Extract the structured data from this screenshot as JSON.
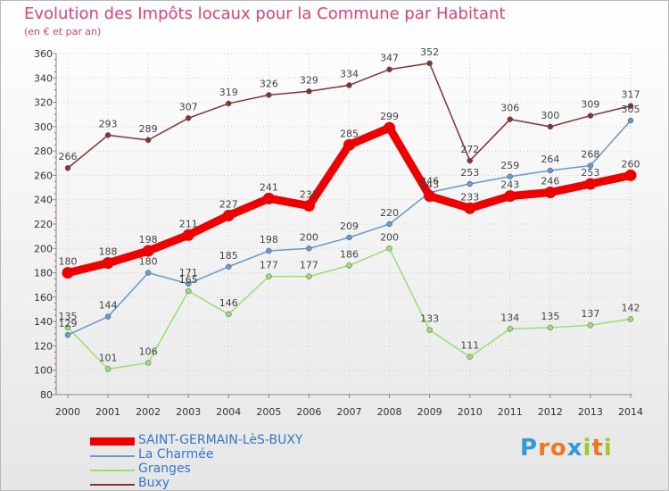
{
  "chart_data": {
    "type": "line",
    "title": "Evolution des Impôts locaux pour la Commune par Habitant",
    "subtitle": "(en € et par an)",
    "x": [
      "2000",
      "2001",
      "2002",
      "2003",
      "2004",
      "2005",
      "2006",
      "2007",
      "2008",
      "2009",
      "2010",
      "2011",
      "2012",
      "2013",
      "2014"
    ],
    "ylim": [
      80,
      360
    ],
    "yticks": [
      80,
      100,
      120,
      140,
      160,
      180,
      200,
      220,
      240,
      260,
      280,
      300,
      320,
      340,
      360
    ],
    "grid": true,
    "legend_position": "bottom-left",
    "series": [
      {
        "name": "SAINT-GERMAIN-LèS-BUXY",
        "color": "#ee0000",
        "values": [
          180,
          188,
          198,
          211,
          227,
          241,
          235,
          285,
          299,
          243,
          233,
          243,
          246,
          253,
          260
        ]
      },
      {
        "name": "La Charmée",
        "color": "#6699cc",
        "values": [
          129,
          144,
          180,
          171,
          185,
          198,
          200,
          209,
          220,
          246,
          253,
          259,
          264,
          268,
          305
        ]
      },
      {
        "name": "Granges",
        "color": "#99dd77",
        "values": [
          135,
          101,
          106,
          165,
          146,
          177,
          177,
          186,
          200,
          133,
          111,
          134,
          135,
          137,
          142
        ]
      },
      {
        "name": "Buxy",
        "color": "#883333",
        "values": [
          266,
          293,
          289,
          307,
          319,
          326,
          329,
          334,
          347,
          352,
          272,
          306,
          300,
          309,
          317
        ]
      }
    ]
  },
  "labels": {
    "SAINT-GERMAIN-LèS-BUXY": [
      "180",
      "188",
      "198",
      "211",
      "227",
      "241",
      "235",
      "285",
      "299",
      "243",
      "233",
      "243",
      "246",
      "253",
      "260"
    ],
    "La Charmée": [
      "129",
      "144",
      "180",
      "171",
      "185",
      "198",
      "200",
      "209",
      "220",
      "246",
      "253",
      "259",
      "264",
      "268",
      "305"
    ],
    "Granges": [
      "135",
      "101",
      "106",
      "165",
      "146",
      "177",
      "177",
      "186",
      "200",
      "133",
      "111",
      "134",
      "135",
      "137",
      "142"
    ],
    "Buxy": [
      "266",
      "293",
      "289",
      "307",
      "319",
      "326",
      "329",
      "334",
      "347",
      "352",
      "272",
      "306",
      "300",
      "309",
      "317"
    ]
  },
  "logo": {
    "text": "Proxiti",
    "letters": [
      "P",
      "r",
      "o",
      "x",
      "i",
      "t",
      "i"
    ],
    "colors": [
      "#3399dd",
      "#ee7722",
      "#ee7722",
      "#3399dd",
      "#99cc33",
      "#ee7722",
      "#99cc33"
    ]
  }
}
